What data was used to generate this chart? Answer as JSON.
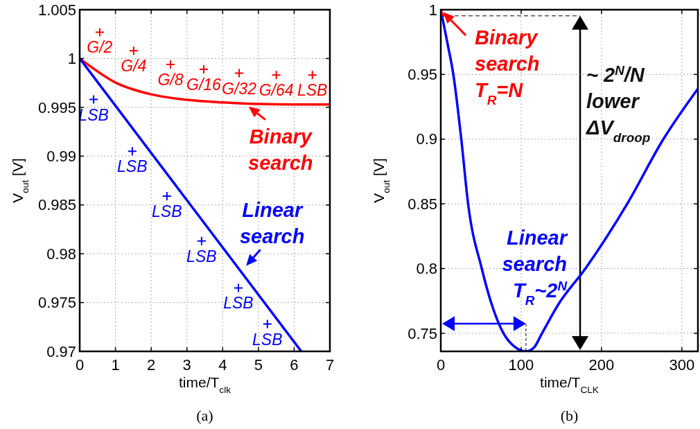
{
  "chart_data": [
    {
      "type": "line",
      "xlabel": "time/T$_{clk}$",
      "ylabel": "V$_{out}$ [V]",
      "xlim": [
        0,
        7
      ],
      "xticks": [
        0,
        1,
        2,
        3,
        4,
        5,
        6,
        7
      ],
      "ylim": [
        0.97,
        1.005
      ],
      "yticks": [
        0.97,
        0.975,
        0.98,
        0.985,
        0.99,
        0.995,
        1,
        1.005
      ],
      "grid": true,
      "series": [
        {
          "type": "line",
          "color": "#ff0000",
          "x": [
            0,
            1,
            2,
            3,
            4,
            5,
            6,
            7
          ],
          "values": [
            1,
            0.99754,
            0.99633,
            0.99577,
            0.9955,
            0.99534,
            0.9953,
            0.9953
          ]
        },
        {
          "type": "line",
          "color": "#0000ff",
          "x": [
            0,
            6.2
          ],
          "values": [
            1,
            0.97
          ]
        },
        {
          "type": "scatter",
          "marker": "cross",
          "color": "#ff0000",
          "x": [
            0.56,
            1.51,
            2.54,
            3.47,
            4.46,
            5.5,
            6.51
          ],
          "values": [
            1.0027,
            1.0008,
            0.9994,
            0.9989,
            0.9985,
            0.9983,
            0.9983
          ]
        },
        {
          "type": "scatter",
          "marker": "cross",
          "color": "#0000ff",
          "x": [
            0.39,
            1.47,
            2.44,
            3.41,
            4.44,
            5.25
          ],
          "values": [
            0.9958,
            0.9905,
            0.9859,
            0.9813,
            0.9765,
            0.9728
          ]
        }
      ],
      "annotations": [
        {
          "text": "Binary\nsearch",
          "x": 4.65,
          "y": 0.9953
        },
        {
          "text": "Linear\nsearch",
          "x": 4.59,
          "y": 0.9785
        },
        {
          "text": "G/2",
          "x": 0.56,
          "y": 1.0027
        },
        {
          "text": "G/4",
          "x": 1.51,
          "y": 1.0008
        },
        {
          "text": "G/8",
          "x": 2.54,
          "y": 0.9994
        },
        {
          "text": "G/16",
          "x": 3.47,
          "y": 0.9989
        },
        {
          "text": "G/32",
          "x": 4.46,
          "y": 0.9985
        },
        {
          "text": "G/64",
          "x": 5.5,
          "y": 0.9983
        },
        {
          "text": "LSB",
          "x": 6.51,
          "y": 0.9983
        },
        {
          "text": "LSB",
          "x": 0.39,
          "y": 0.9958
        },
        {
          "text": "LSB",
          "x": 1.47,
          "y": 0.9905
        },
        {
          "text": "LSB",
          "x": 2.44,
          "y": 0.9859
        },
        {
          "text": "LSB",
          "x": 3.41,
          "y": 0.9813
        },
        {
          "text": "LSB",
          "x": 4.44,
          "y": 0.9765
        },
        {
          "text": "LSB",
          "x": 5.25,
          "y": 0.9728
        },
        "(a)"
      ]
    },
    {
      "type": "line",
      "xlabel": "time/T$_{CLK}$",
      "ylabel": "V$_{out}$ [V]",
      "xlim": [
        0,
        320
      ],
      "xticks": [
        0,
        100,
        200,
        300
      ],
      "ylim": [
        0.736,
        1
      ],
      "yticks": [
        0.75,
        0.8,
        0.85,
        0.9,
        0.95,
        1
      ],
      "grid": true,
      "series": [
        {
          "type": "line",
          "color": "#0000ff",
          "x": [
            0,
            8,
            15.6,
            25.5,
            34,
            51,
            62,
            78,
            92,
            106,
            116,
            126,
            146,
            180,
            232,
            277,
            320
          ],
          "values": [
            1,
            0.975,
            0.95,
            0.9,
            0.85,
            0.8,
            0.775,
            0.75,
            0.7395,
            0.736,
            0.739,
            0.75,
            0.772,
            0.8,
            0.85,
            0.9,
            0.939
          ]
        },
        {
          "type": "line",
          "color": "#ff0000",
          "x": [
            0,
            1,
            2,
            7
          ],
          "values": [
            1,
            0.9975,
            0.9963,
            0.9953
          ]
        }
      ],
      "ref_lines": [
        {
          "axis": "y",
          "value": 0.9953,
          "color": "#555555",
          "line_style": "dashed"
        }
      ],
      "annotations": [
        {
          "text": "Binary\nsearch\nT$_{R}$=N",
          "x": 0,
          "y": 1
        },
        "Linear\nsearch\nT$_{R}$~2$^{N}$",
        "~ 2$^{N}$/N\nlower\nΔV$_{droop}$",
        "(b)"
      ]
    }
  ]
}
